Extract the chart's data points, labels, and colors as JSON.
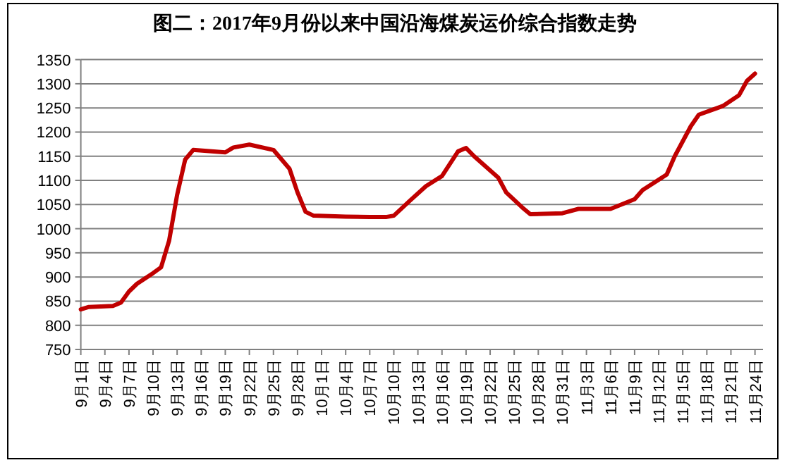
{
  "chart_data": {
    "type": "line",
    "title": "图二：2017年9月份以来中国沿海煤炭运价综合指数走势",
    "x": [
      "--09-01",
      "--09-02",
      "--09-05",
      "--09-06",
      "--09-07",
      "--09-08",
      "--09-09",
      "--09-10",
      "--09-11",
      "--09-12",
      "--09-13",
      "--09-14",
      "--09-15",
      "--09-19",
      "--09-20",
      "--09-22",
      "--09-25",
      "--09-27",
      "--09-28",
      "--09-29",
      "--09-30",
      "--10-04",
      "--10-07",
      "--10-09",
      "--10-10",
      "--10-12",
      "--10-14",
      "--10-16",
      "--10-18",
      "--10-19",
      "--10-20",
      "--10-23",
      "--10-24",
      "--10-26",
      "--10-27",
      "--10-31",
      "--11-02",
      "--11-06",
      "--11-09",
      "--11-10",
      "--11-13",
      "--11-14",
      "--11-16",
      "--11-17",
      "--11-20",
      "--11-22",
      "--11-23",
      "--11-24"
    ],
    "values": [
      833,
      838,
      840,
      847,
      870,
      886,
      897,
      908,
      920,
      975,
      1070,
      1143,
      1163,
      1158,
      1168,
      1174,
      1163,
      1124,
      1075,
      1035,
      1027,
      1025,
      1024,
      1024,
      1027,
      1058,
      1088,
      1109,
      1160,
      1167,
      1150,
      1106,
      1075,
      1044,
      1030,
      1032,
      1041,
      1041,
      1061,
      1080,
      1112,
      1150,
      1212,
      1236,
      1254,
      1276,
      1306,
      1321
    ],
    "color": "#c00000",
    "xlim": [
      "--09-01",
      "--11-25"
    ],
    "xticks": [
      {
        "value": "--09-01",
        "label": "9月1日"
      },
      {
        "value": "--09-04",
        "label": "9月4日"
      },
      {
        "value": "--09-07",
        "label": "9月7日"
      },
      {
        "value": "--09-10",
        "label": "9月10日"
      },
      {
        "value": "--09-13",
        "label": "9月13日"
      },
      {
        "value": "--09-16",
        "label": "9月16日"
      },
      {
        "value": "--09-19",
        "label": "9月19日"
      },
      {
        "value": "--09-22",
        "label": "9月22日"
      },
      {
        "value": "--09-25",
        "label": "9月25日"
      },
      {
        "value": "--09-28",
        "label": "9月28日"
      },
      {
        "value": "--10-01",
        "label": "10月1日"
      },
      {
        "value": "--10-04",
        "label": "10月4日"
      },
      {
        "value": "--10-07",
        "label": "10月7日"
      },
      {
        "value": "--10-10",
        "label": "10月10日"
      },
      {
        "value": "--10-13",
        "label": "10月13日"
      },
      {
        "value": "--10-16",
        "label": "10月16日"
      },
      {
        "value": "--10-19",
        "label": "10月19日"
      },
      {
        "value": "--10-22",
        "label": "10月22日"
      },
      {
        "value": "--10-25",
        "label": "10月25日"
      },
      {
        "value": "--10-28",
        "label": "10月28日"
      },
      {
        "value": "--10-31",
        "label": "10月31日"
      },
      {
        "value": "--11-03",
        "label": "11月3日"
      },
      {
        "value": "--11-06",
        "label": "11月6日"
      },
      {
        "value": "--11-09",
        "label": "11月9日"
      },
      {
        "value": "--11-12",
        "label": "11月12日"
      },
      {
        "value": "--11-15",
        "label": "11月15日"
      },
      {
        "value": "--11-18",
        "label": "11月18日"
      },
      {
        "value": "--11-21",
        "label": "11月21日"
      },
      {
        "value": "--11-24",
        "label": "11月24日"
      }
    ],
    "ylim": [
      750,
      1350
    ],
    "yticks": [
      750,
      800,
      850,
      900,
      950,
      1000,
      1050,
      1100,
      1150,
      1200,
      1250,
      1300,
      1350
    ],
    "grid": "y"
  }
}
